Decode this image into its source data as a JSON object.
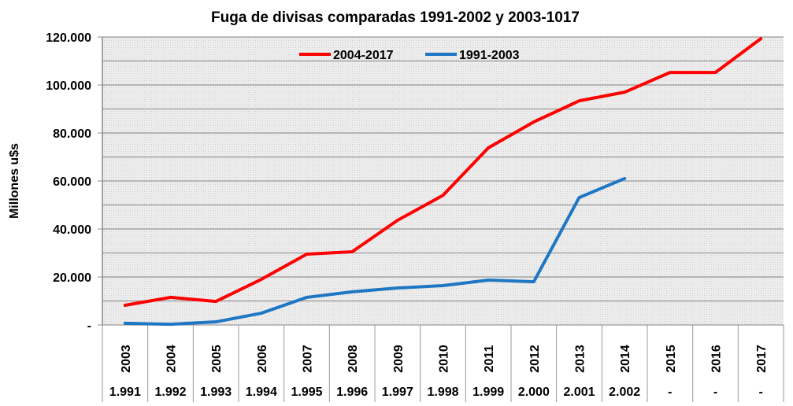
{
  "chart_data": {
    "type": "line",
    "title": "Fuga de divisas comparadas  1991-2002 y 2003-1017",
    "ylabel": "Millones u$s",
    "xlabel": "",
    "ylim": [
      0,
      120000
    ],
    "yticks": [
      0,
      20000,
      40000,
      60000,
      80000,
      100000,
      120000
    ],
    "ytick_labels": [
      "-",
      "20.000",
      "40.000",
      "60.000",
      "80.000",
      "100.000",
      "120.000"
    ],
    "grid": true,
    "legend_position": "top-center",
    "categories": [
      "2003",
      "2004",
      "2005",
      "2006",
      "2007",
      "2008",
      "2009",
      "2010",
      "2011",
      "2012",
      "2013",
      "2014",
      "2015",
      "2016",
      "2017"
    ],
    "categories_secondary": [
      "1.991",
      "1.992",
      "1.993",
      "1.994",
      "1.995",
      "1.996",
      "1.997",
      "1.998",
      "1.999",
      "2.000",
      "2.001",
      "2.002",
      "-",
      "-",
      "-"
    ],
    "series": [
      {
        "name": "2004-2017",
        "color": "#ff0000",
        "values": [
          8200,
          11500,
          9800,
          19000,
          29500,
          30500,
          43600,
          54000,
          73800,
          84600,
          93400,
          97000,
          105200,
          105200,
          119300
        ]
      },
      {
        "name": "1991-2003",
        "color": "#1f77c4",
        "values": [
          700,
          300,
          1300,
          4900,
          11500,
          13800,
          15400,
          16400,
          18700,
          18000,
          53100,
          61000,
          null,
          null,
          null
        ]
      }
    ]
  }
}
